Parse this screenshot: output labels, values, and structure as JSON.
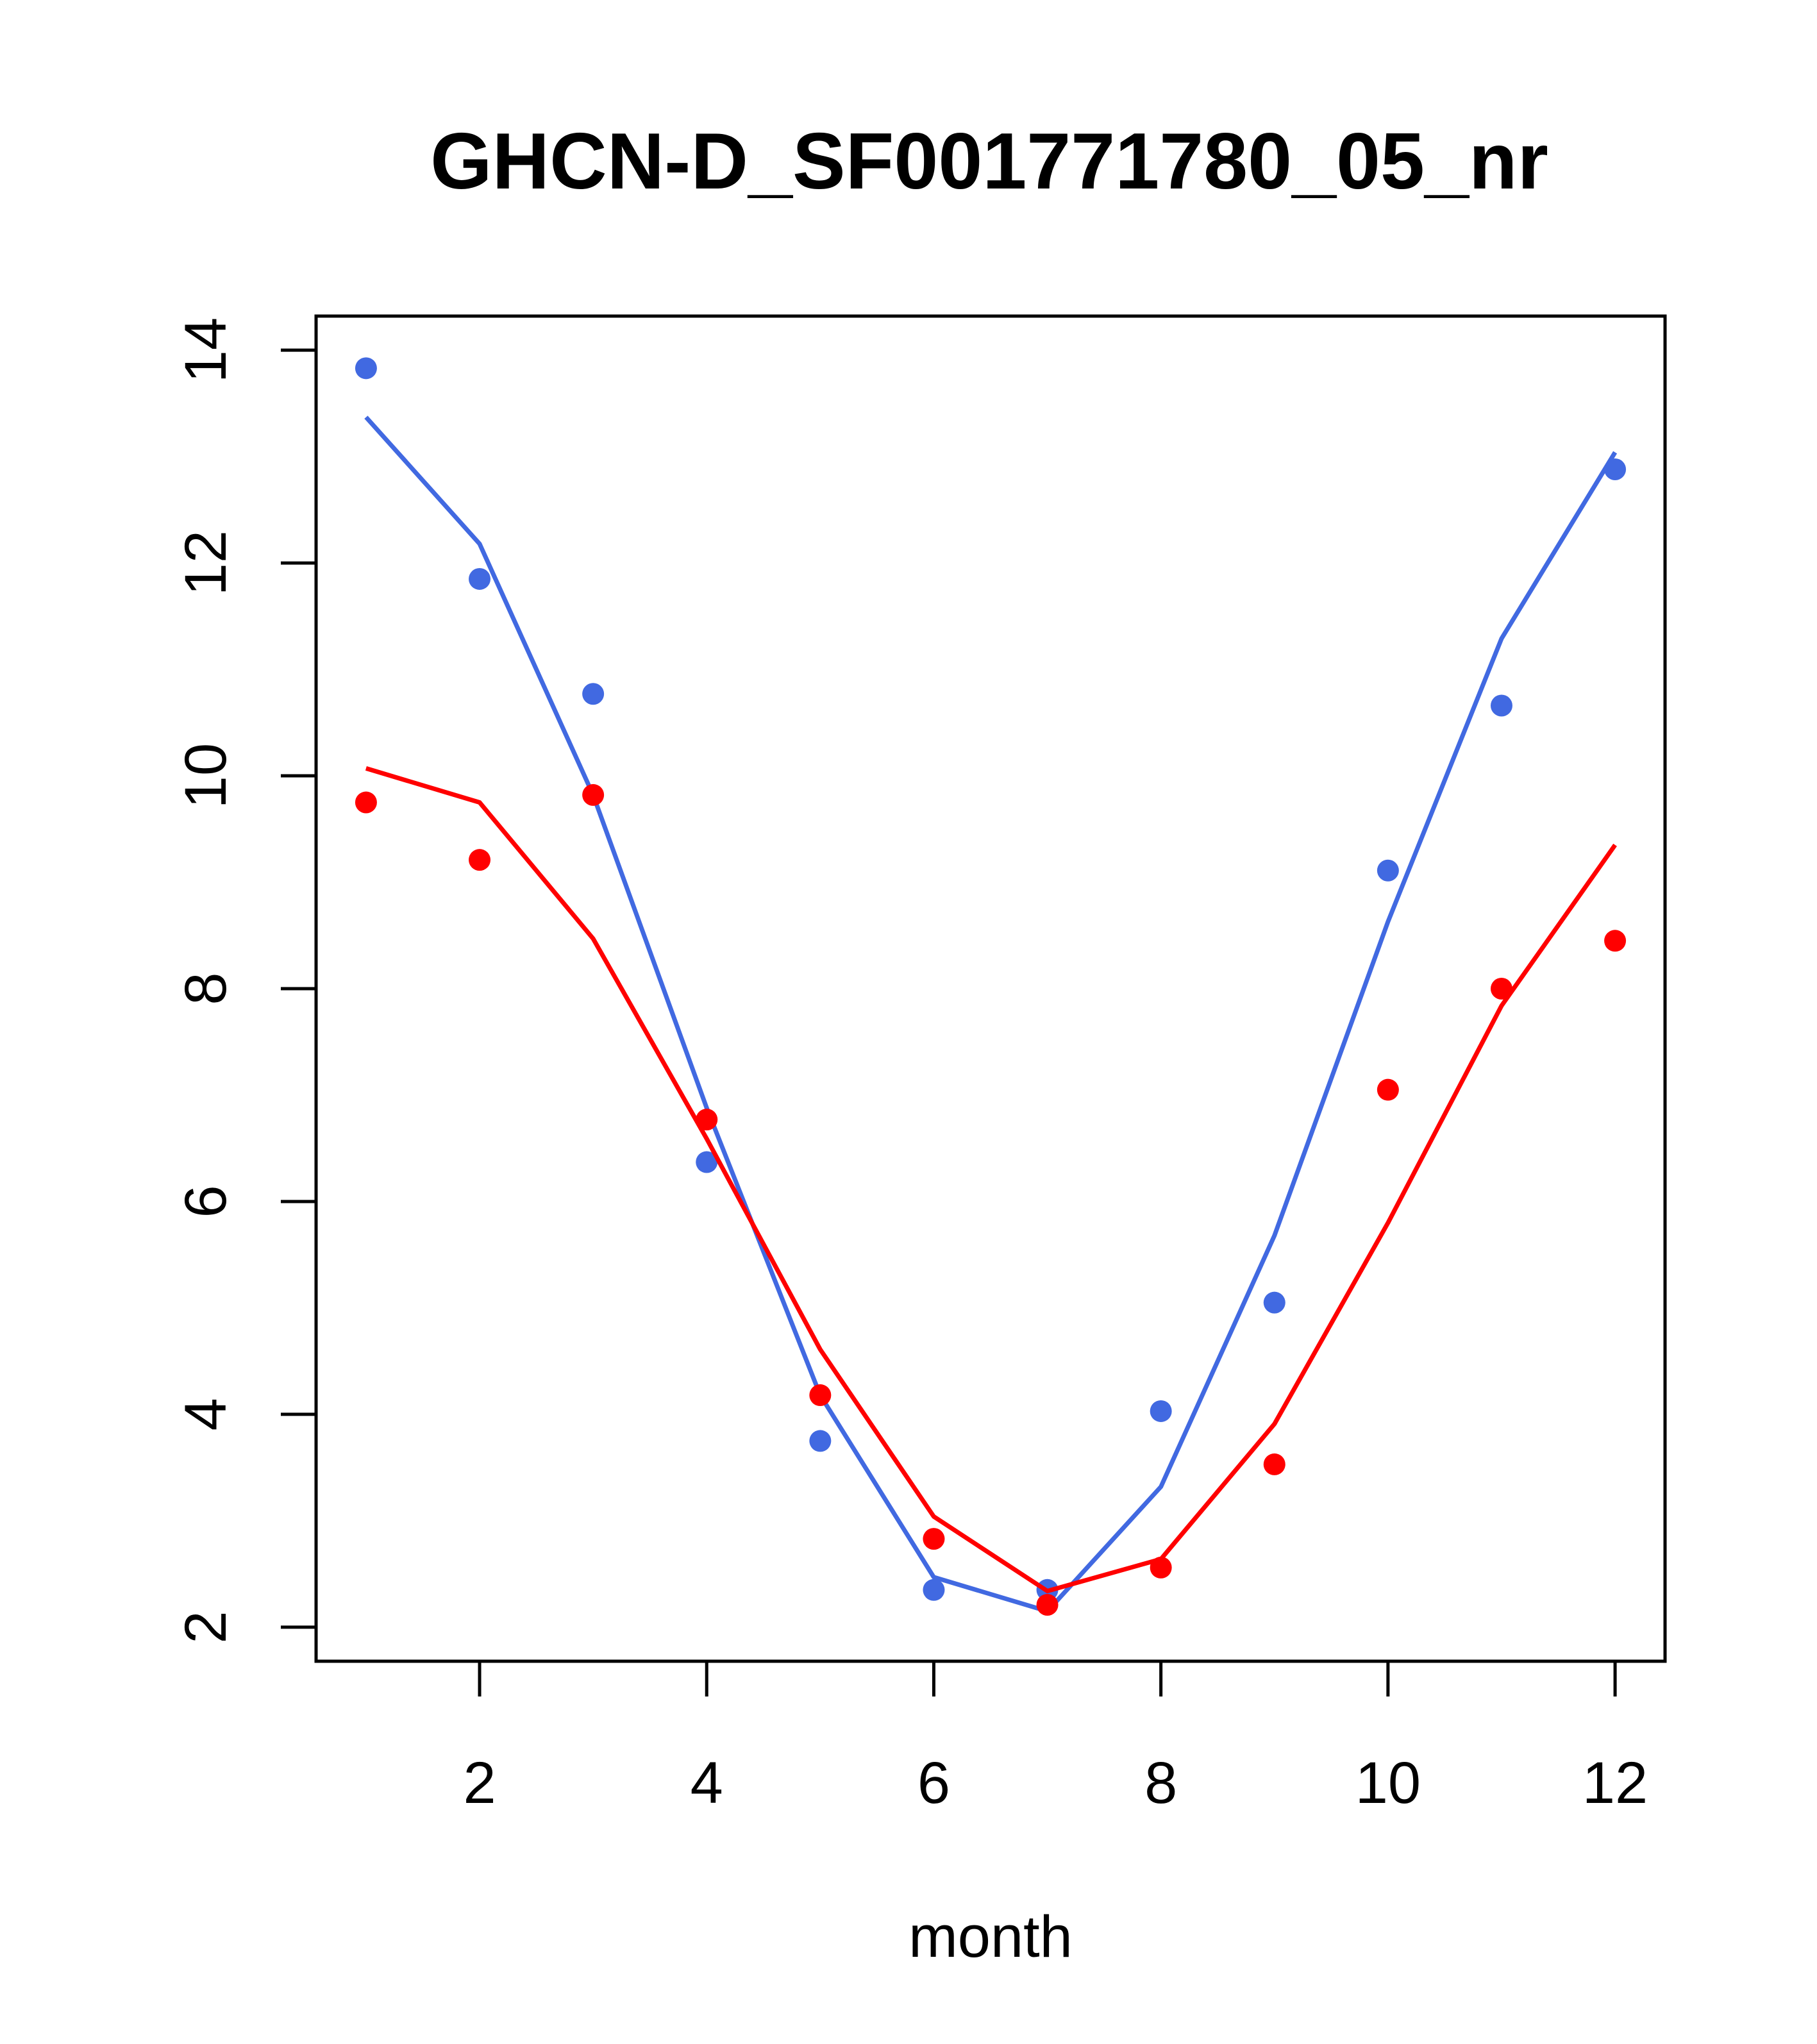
{
  "chart_data": {
    "type": "line",
    "title": "GHCN-D_SF001771780_05_nr",
    "xlabel": "month",
    "ylabel": "",
    "xlim": [
      0.56,
      12.44
    ],
    "ylim": [
      1.68,
      14.32
    ],
    "xticks": [
      2,
      4,
      6,
      8,
      10,
      12
    ],
    "xtick_labels": [
      "2",
      "4",
      "6",
      "8",
      "10",
      "12"
    ],
    "yticks": [
      2,
      4,
      6,
      8,
      10,
      12,
      14
    ],
    "ytick_labels": [
      "2",
      "4",
      "6",
      "8",
      "10",
      "12",
      "14"
    ],
    "grid": false,
    "x": [
      1,
      2,
      3,
      4,
      5,
      6,
      7,
      8,
      9,
      10,
      11,
      12
    ],
    "series": [
      {
        "color": "#4169E1",
        "points": [
          13.83,
          11.85,
          10.77,
          6.37,
          3.75,
          2.35,
          2.35,
          4.03,
          5.05,
          9.11,
          10.66,
          12.88
        ],
        "line": [
          13.37,
          12.18,
          9.82,
          6.88,
          4.18,
          2.47,
          2.15,
          3.32,
          5.68,
          8.63,
          11.29,
          13.04
        ]
      },
      {
        "color": "#FF0000",
        "points": [
          9.75,
          9.21,
          9.82,
          6.77,
          4.18,
          2.83,
          2.21,
          2.56,
          3.53,
          7.05,
          8.0,
          8.45
        ],
        "line": [
          10.07,
          9.75,
          8.47,
          6.59,
          4.61,
          3.04,
          2.34,
          2.64,
          3.91,
          5.8,
          7.84,
          9.35
        ]
      }
    ]
  }
}
